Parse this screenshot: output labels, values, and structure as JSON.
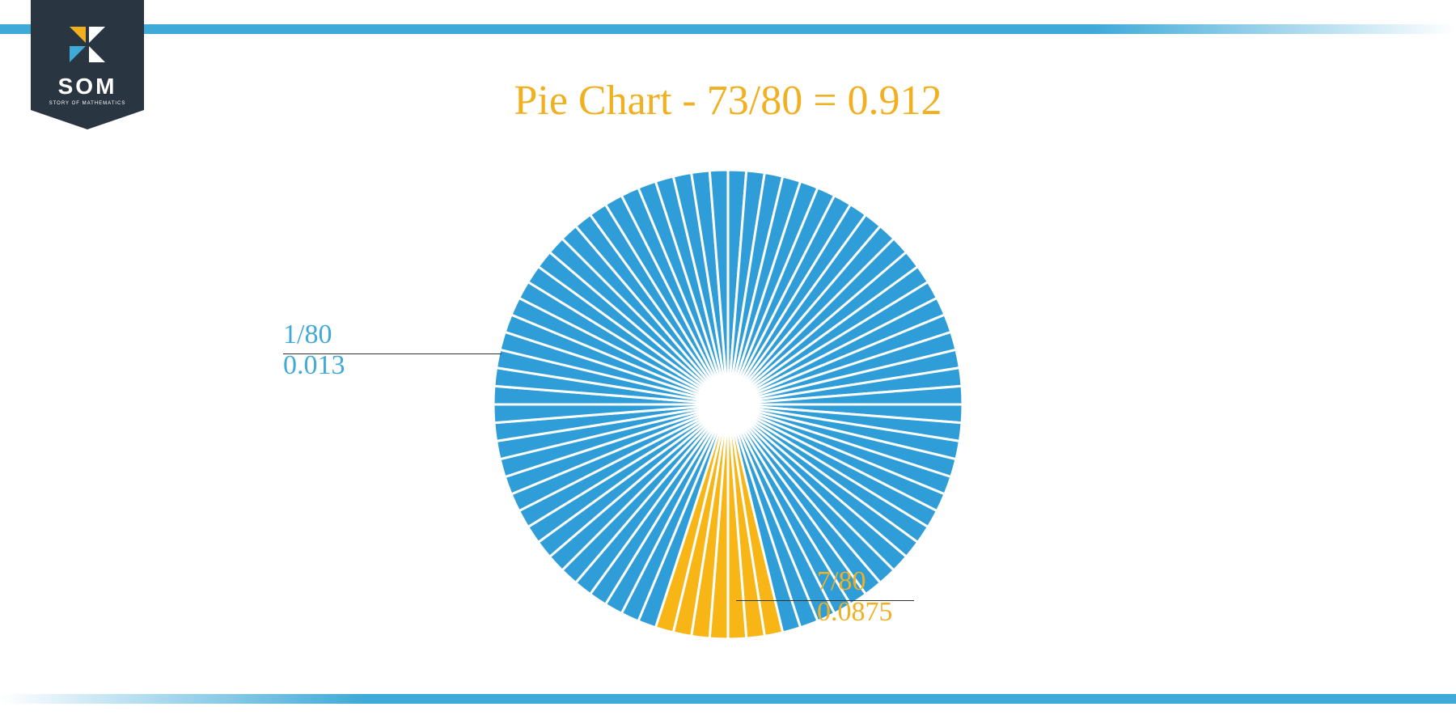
{
  "logo": {
    "text": "SOM",
    "subtext": "STORY OF MATHEMATICS",
    "badge_color": "#2a3542",
    "icon_colors": {
      "top_left": "#f0b020",
      "top_right": "#ffffff",
      "bottom_left": "#3fa9d8",
      "bottom_right": "#ffffff"
    }
  },
  "chart": {
    "type": "pie",
    "title": "Pie Chart - 73/80 = 0.912",
    "title_color": "#f0b020",
    "title_fontsize": 52,
    "total_slices": 80,
    "blue_slices": 73,
    "yellow_slices": 7,
    "blue_color": "#2f9ed8",
    "yellow_color": "#f7b516",
    "separator_color": "#ffffff",
    "separator_width": 3,
    "radius": 290,
    "center_hole": 0,
    "yellow_start_slice": 37,
    "labels": {
      "blue": {
        "fraction": "1/80",
        "decimal": "0.013",
        "color": "#3fa9d8"
      },
      "yellow": {
        "fraction": "7/80",
        "decimal": "0.0875",
        "color": "#f0b020"
      }
    }
  },
  "bars": {
    "color": "#3fa9d8",
    "height": 12
  },
  "background_color": "#ffffff"
}
